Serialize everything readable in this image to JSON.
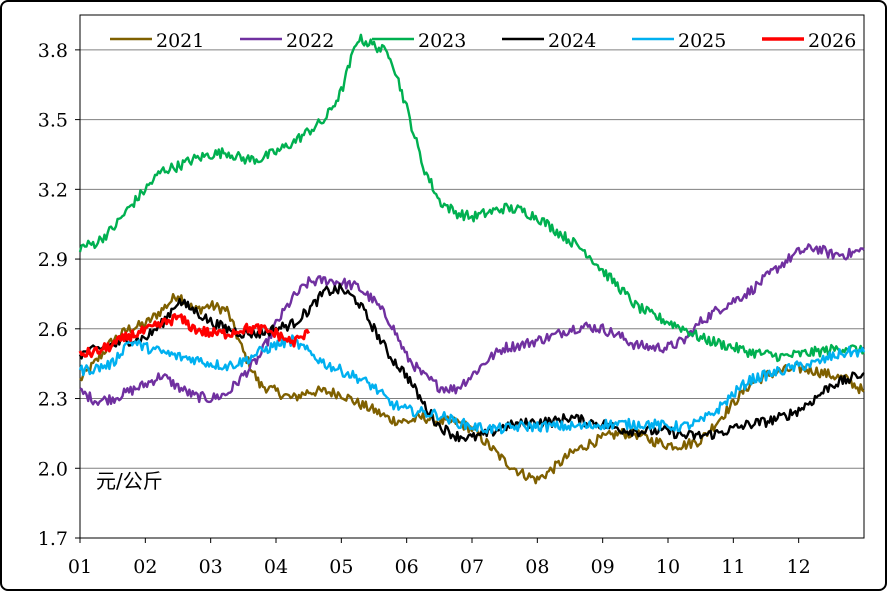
{
  "chart_data": {
    "type": "line",
    "title": "",
    "xlabel": "",
    "ylabel": "元/公斤",
    "ylim": [
      1.7,
      3.95
    ],
    "yticks": [
      1.7,
      2.0,
      2.3,
      2.6,
      2.9,
      3.2,
      3.5,
      3.8
    ],
    "ytick_labels": [
      "1.7",
      "2.0",
      "2.3",
      "2.6",
      "2.9",
      "3.2",
      "3.5",
      "3.8"
    ],
    "xlim": [
      0,
      12
    ],
    "xtick_labels": [
      "01",
      "02",
      "03",
      "04",
      "05",
      "06",
      "07",
      "08",
      "09",
      "10",
      "11",
      "12"
    ],
    "grid": true,
    "legend_position": "top",
    "series": [
      {
        "name": "2021",
        "color": "#7F6000",
        "x": [
          0,
          0.25,
          0.5,
          0.75,
          1.0,
          1.25,
          1.5,
          1.75,
          2.0,
          2.25,
          2.5,
          2.75,
          3.0,
          3.25,
          3.5,
          3.75,
          4.0,
          4.25,
          4.5,
          4.75,
          5.0,
          5.25,
          5.5,
          5.75,
          6.0,
          6.25,
          6.5,
          6.75,
          7.0,
          7.25,
          7.5,
          7.75,
          8.0,
          8.25,
          8.5,
          8.75,
          9.0,
          9.25,
          9.5,
          9.75,
          10.0,
          10.25,
          10.5,
          10.75,
          11.0,
          11.25,
          11.5,
          11.75,
          12.0
        ],
        "values": [
          2.38,
          2.46,
          2.55,
          2.6,
          2.62,
          2.68,
          2.75,
          2.68,
          2.7,
          2.68,
          2.5,
          2.36,
          2.33,
          2.3,
          2.33,
          2.33,
          2.32,
          2.28,
          2.25,
          2.21,
          2.2,
          2.22,
          2.2,
          2.2,
          2.17,
          2.1,
          2.03,
          1.98,
          1.95,
          2.0,
          2.06,
          2.1,
          2.13,
          2.15,
          2.15,
          2.12,
          2.1,
          2.1,
          2.12,
          2.2,
          2.28,
          2.36,
          2.4,
          2.42,
          2.43,
          2.42,
          2.4,
          2.38,
          2.33
        ]
      },
      {
        "name": "2022",
        "color": "#7030A0",
        "x": [
          0,
          0.25,
          0.5,
          0.75,
          1.0,
          1.25,
          1.5,
          1.75,
          2.0,
          2.25,
          2.5,
          2.75,
          3.0,
          3.25,
          3.5,
          3.75,
          4.0,
          4.25,
          4.5,
          4.75,
          5.0,
          5.25,
          5.5,
          5.75,
          6.0,
          6.25,
          6.5,
          6.75,
          7.0,
          7.25,
          7.5,
          7.75,
          8.0,
          8.25,
          8.5,
          8.75,
          9.0,
          9.25,
          9.5,
          9.75,
          10.0,
          10.25,
          10.5,
          10.75,
          11.0,
          11.25,
          11.5,
          11.75,
          12.0
        ],
        "values": [
          2.33,
          2.29,
          2.3,
          2.33,
          2.36,
          2.4,
          2.35,
          2.31,
          2.3,
          2.32,
          2.4,
          2.48,
          2.62,
          2.73,
          2.8,
          2.81,
          2.8,
          2.78,
          2.72,
          2.63,
          2.48,
          2.4,
          2.35,
          2.34,
          2.4,
          2.47,
          2.52,
          2.53,
          2.55,
          2.57,
          2.6,
          2.61,
          2.6,
          2.57,
          2.53,
          2.52,
          2.52,
          2.55,
          2.63,
          2.68,
          2.72,
          2.76,
          2.82,
          2.88,
          2.93,
          2.95,
          2.92,
          2.92,
          2.94
        ]
      },
      {
        "name": "2023",
        "color": "#00B050",
        "x": [
          0,
          0.25,
          0.5,
          0.75,
          1.0,
          1.25,
          1.5,
          1.75,
          2.0,
          2.25,
          2.5,
          2.75,
          3.0,
          3.25,
          3.5,
          3.75,
          4.0,
          4.25,
          4.5,
          4.75,
          5.0,
          5.25,
          5.5,
          5.75,
          6.0,
          6.25,
          6.5,
          6.75,
          7.0,
          7.25,
          7.5,
          7.75,
          8.0,
          8.25,
          8.5,
          8.75,
          9.0,
          9.25,
          9.5,
          9.75,
          10.0,
          10.25,
          10.5,
          10.75,
          11.0,
          11.25,
          11.5,
          11.75,
          12.0
        ],
        "values": [
          2.95,
          2.97,
          3.03,
          3.12,
          3.2,
          3.28,
          3.3,
          3.33,
          3.35,
          3.36,
          3.33,
          3.33,
          3.36,
          3.4,
          3.45,
          3.5,
          3.62,
          3.85,
          3.82,
          3.78,
          3.55,
          3.3,
          3.15,
          3.1,
          3.08,
          3.1,
          3.12,
          3.11,
          3.08,
          3.03,
          2.98,
          2.93,
          2.85,
          2.78,
          2.7,
          2.66,
          2.63,
          2.6,
          2.56,
          2.54,
          2.52,
          2.5,
          2.49,
          2.48,
          2.49,
          2.5,
          2.51,
          2.52,
          2.5
        ]
      },
      {
        "name": "2024",
        "color": "#000000",
        "x": [
          0,
          0.25,
          0.5,
          0.75,
          1.0,
          1.25,
          1.5,
          1.75,
          2.0,
          2.25,
          2.5,
          2.75,
          3.0,
          3.25,
          3.5,
          3.75,
          4.0,
          4.25,
          4.5,
          4.75,
          5.0,
          5.25,
          5.5,
          5.75,
          6.0,
          6.25,
          6.5,
          6.75,
          7.0,
          7.25,
          7.5,
          7.75,
          8.0,
          8.25,
          8.5,
          8.75,
          9.0,
          9.25,
          9.5,
          9.75,
          10.0,
          10.25,
          10.5,
          10.75,
          11.0,
          11.25,
          11.5,
          11.75,
          12.0
        ],
        "values": [
          2.49,
          2.51,
          2.53,
          2.55,
          2.56,
          2.62,
          2.72,
          2.68,
          2.63,
          2.6,
          2.58,
          2.58,
          2.6,
          2.62,
          2.68,
          2.76,
          2.77,
          2.72,
          2.6,
          2.48,
          2.4,
          2.28,
          2.18,
          2.14,
          2.13,
          2.15,
          2.18,
          2.19,
          2.2,
          2.2,
          2.22,
          2.2,
          2.19,
          2.17,
          2.16,
          2.16,
          2.16,
          2.14,
          2.14,
          2.15,
          2.17,
          2.19,
          2.2,
          2.22,
          2.25,
          2.3,
          2.36,
          2.38,
          2.41
        ]
      },
      {
        "name": "2025",
        "color": "#00B0F0",
        "x": [
          0,
          0.25,
          0.5,
          0.75,
          1.0,
          1.25,
          1.5,
          1.75,
          2.0,
          2.25,
          2.5,
          2.75,
          3.0,
          3.25,
          3.5,
          3.75,
          4.0,
          4.25,
          4.5,
          4.75,
          5.0,
          5.25,
          5.5,
          5.75,
          6.0,
          6.25,
          6.5,
          6.75,
          7.0,
          7.25,
          7.5,
          7.75,
          8.0,
          8.25,
          8.5,
          8.75,
          9.0,
          9.25,
          9.5,
          9.75,
          10.0,
          10.25,
          10.5,
          10.75,
          11.0,
          11.25,
          11.5,
          11.75,
          12.0
        ],
        "values": [
          2.42,
          2.43,
          2.45,
          2.55,
          2.52,
          2.5,
          2.48,
          2.47,
          2.45,
          2.44,
          2.46,
          2.5,
          2.53,
          2.55,
          2.5,
          2.45,
          2.42,
          2.39,
          2.35,
          2.28,
          2.25,
          2.24,
          2.23,
          2.2,
          2.18,
          2.17,
          2.17,
          2.18,
          2.18,
          2.18,
          2.18,
          2.18,
          2.19,
          2.19,
          2.19,
          2.19,
          2.18,
          2.18,
          2.2,
          2.25,
          2.32,
          2.38,
          2.4,
          2.42,
          2.44,
          2.45,
          2.48,
          2.5,
          2.5
        ]
      },
      {
        "name": "2026",
        "color": "#FF0000",
        "x": [
          0,
          0.25,
          0.5,
          0.75,
          1.0,
          1.25,
          1.5,
          1.75,
          2.0,
          2.25,
          2.5,
          2.75,
          3.0,
          3.25,
          3.5
        ],
        "values": [
          2.49,
          2.5,
          2.53,
          2.57,
          2.59,
          2.62,
          2.65,
          2.6,
          2.58,
          2.58,
          2.6,
          2.6,
          2.58,
          2.54,
          2.58
        ]
      }
    ]
  }
}
